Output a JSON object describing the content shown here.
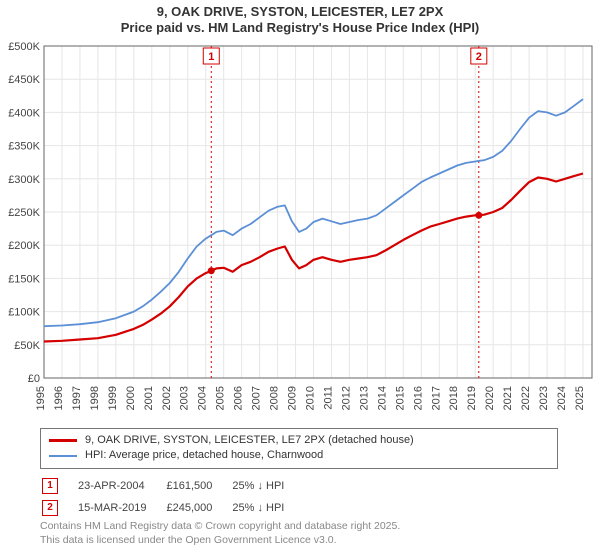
{
  "title_line1": "9, OAK DRIVE, SYSTON, LEICESTER, LE7 2PX",
  "title_line2": "Price paid vs. HM Land Registry's House Price Index (HPI)",
  "chart": {
    "type": "line",
    "background_color": "#ffffff",
    "grid_color": "#e6e6e6",
    "axis_color": "#666666",
    "tick_font_size": 11,
    "x_years": [
      1995,
      1996,
      1997,
      1998,
      1999,
      2000,
      2001,
      2002,
      2003,
      2004,
      2005,
      2006,
      2007,
      2008,
      2009,
      2010,
      2011,
      2012,
      2013,
      2014,
      2015,
      2016,
      2017,
      2018,
      2019,
      2020,
      2021,
      2022,
      2023,
      2024,
      2025
    ],
    "y_ticks": [
      0,
      50000,
      100000,
      150000,
      200000,
      250000,
      300000,
      350000,
      400000,
      450000,
      500000
    ],
    "y_tick_labels": [
      "£0",
      "£50K",
      "£100K",
      "£150K",
      "£200K",
      "£250K",
      "£300K",
      "£350K",
      "£400K",
      "£450K",
      "£500K"
    ],
    "ylim": [
      0,
      500000
    ],
    "xlim": [
      1995,
      2025.5
    ],
    "series": [
      {
        "name": "price_paid",
        "label": "9, OAK DRIVE, SYSTON, LEICESTER, LE7 2PX (detached house)",
        "color": "#d40000",
        "line_width": 2.2,
        "points": [
          [
            1995.0,
            55000
          ],
          [
            1996.0,
            56000
          ],
          [
            1997.0,
            58000
          ],
          [
            1998.0,
            60000
          ],
          [
            1999.0,
            65000
          ],
          [
            2000.0,
            74000
          ],
          [
            2000.5,
            80000
          ],
          [
            2001.0,
            88000
          ],
          [
            2001.5,
            97000
          ],
          [
            2002.0,
            108000
          ],
          [
            2002.5,
            122000
          ],
          [
            2003.0,
            138000
          ],
          [
            2003.5,
            150000
          ],
          [
            2004.0,
            158000
          ],
          [
            2004.31,
            161500
          ],
          [
            2004.6,
            165000
          ],
          [
            2005.0,
            166000
          ],
          [
            2005.5,
            160000
          ],
          [
            2006.0,
            170000
          ],
          [
            2006.5,
            175000
          ],
          [
            2007.0,
            182000
          ],
          [
            2007.5,
            190000
          ],
          [
            2008.0,
            195000
          ],
          [
            2008.4,
            198000
          ],
          [
            2008.8,
            178000
          ],
          [
            2009.2,
            165000
          ],
          [
            2009.6,
            170000
          ],
          [
            2010.0,
            178000
          ],
          [
            2010.5,
            182000
          ],
          [
            2011.0,
            178000
          ],
          [
            2011.5,
            175000
          ],
          [
            2012.0,
            178000
          ],
          [
            2012.5,
            180000
          ],
          [
            2013.0,
            182000
          ],
          [
            2013.5,
            185000
          ],
          [
            2014.0,
            192000
          ],
          [
            2014.5,
            200000
          ],
          [
            2015.0,
            208000
          ],
          [
            2015.5,
            215000
          ],
          [
            2016.0,
            222000
          ],
          [
            2016.5,
            228000
          ],
          [
            2017.0,
            232000
          ],
          [
            2017.5,
            236000
          ],
          [
            2018.0,
            240000
          ],
          [
            2018.5,
            243000
          ],
          [
            2019.0,
            245000
          ],
          [
            2019.2,
            245000
          ],
          [
            2019.5,
            246000
          ],
          [
            2020.0,
            250000
          ],
          [
            2020.5,
            256000
          ],
          [
            2021.0,
            268000
          ],
          [
            2021.5,
            282000
          ],
          [
            2022.0,
            295000
          ],
          [
            2022.5,
            302000
          ],
          [
            2023.0,
            300000
          ],
          [
            2023.5,
            296000
          ],
          [
            2024.0,
            300000
          ],
          [
            2024.5,
            304000
          ],
          [
            2025.0,
            308000
          ]
        ]
      },
      {
        "name": "hpi",
        "label": "HPI: Average price, detached house, Charnwood",
        "color": "#5b8fd6",
        "line_width": 1.8,
        "points": [
          [
            1995.0,
            78000
          ],
          [
            1996.0,
            79000
          ],
          [
            1997.0,
            81000
          ],
          [
            1998.0,
            84000
          ],
          [
            1999.0,
            90000
          ],
          [
            2000.0,
            100000
          ],
          [
            2000.5,
            108000
          ],
          [
            2001.0,
            118000
          ],
          [
            2001.5,
            130000
          ],
          [
            2002.0,
            143000
          ],
          [
            2002.5,
            160000
          ],
          [
            2003.0,
            180000
          ],
          [
            2003.5,
            198000
          ],
          [
            2004.0,
            210000
          ],
          [
            2004.31,
            215000
          ],
          [
            2004.6,
            220000
          ],
          [
            2005.0,
            222000
          ],
          [
            2005.5,
            215000
          ],
          [
            2006.0,
            225000
          ],
          [
            2006.5,
            232000
          ],
          [
            2007.0,
            242000
          ],
          [
            2007.5,
            252000
          ],
          [
            2008.0,
            258000
          ],
          [
            2008.4,
            260000
          ],
          [
            2008.8,
            236000
          ],
          [
            2009.2,
            220000
          ],
          [
            2009.6,
            225000
          ],
          [
            2010.0,
            235000
          ],
          [
            2010.5,
            240000
          ],
          [
            2011.0,
            236000
          ],
          [
            2011.5,
            232000
          ],
          [
            2012.0,
            235000
          ],
          [
            2012.5,
            238000
          ],
          [
            2013.0,
            240000
          ],
          [
            2013.5,
            245000
          ],
          [
            2014.0,
            255000
          ],
          [
            2014.5,
            265000
          ],
          [
            2015.0,
            275000
          ],
          [
            2015.5,
            285000
          ],
          [
            2016.0,
            295000
          ],
          [
            2016.5,
            302000
          ],
          [
            2017.0,
            308000
          ],
          [
            2017.5,
            314000
          ],
          [
            2018.0,
            320000
          ],
          [
            2018.5,
            324000
          ],
          [
            2019.0,
            326000
          ],
          [
            2019.2,
            327000
          ],
          [
            2019.5,
            328000
          ],
          [
            2020.0,
            333000
          ],
          [
            2020.5,
            342000
          ],
          [
            2021.0,
            357000
          ],
          [
            2021.5,
            375000
          ],
          [
            2022.0,
            392000
          ],
          [
            2022.5,
            402000
          ],
          [
            2023.0,
            400000
          ],
          [
            2023.5,
            395000
          ],
          [
            2024.0,
            400000
          ],
          [
            2024.5,
            410000
          ],
          [
            2025.0,
            420000
          ]
        ]
      }
    ],
    "event_markers": [
      {
        "id": "1",
        "x": 2004.31,
        "y": 161500,
        "line_color": "#d40000",
        "box_border": "#d40000",
        "box_text": "#d40000"
      },
      {
        "id": "2",
        "x": 2019.2,
        "y": 245000,
        "line_color": "#d40000",
        "box_border": "#d40000",
        "box_text": "#d40000"
      }
    ],
    "event_marker_point_radius": 3.5,
    "event_marker_point_fill": "#d40000"
  },
  "legend": {
    "rows": [
      {
        "color": "#d40000",
        "width": 3,
        "label": "9, OAK DRIVE, SYSTON, LEICESTER, LE7 2PX (detached house)"
      },
      {
        "color": "#5b8fd6",
        "width": 2,
        "label": "HPI: Average price, detached house, Charnwood"
      }
    ]
  },
  "markers_table": {
    "rows": [
      {
        "id": "1",
        "border": "#d40000",
        "text_color": "#d40000",
        "date": "23-APR-2004",
        "price": "£161,500",
        "delta": "25% ↓ HPI"
      },
      {
        "id": "2",
        "border": "#d40000",
        "text_color": "#d40000",
        "date": "15-MAR-2019",
        "price": "£245,000",
        "delta": "25% ↓ HPI"
      }
    ]
  },
  "footer": {
    "line1": "Contains HM Land Registry data © Crown copyright and database right 2025.",
    "line2": "This data is licensed under the Open Government Licence v3.0."
  }
}
